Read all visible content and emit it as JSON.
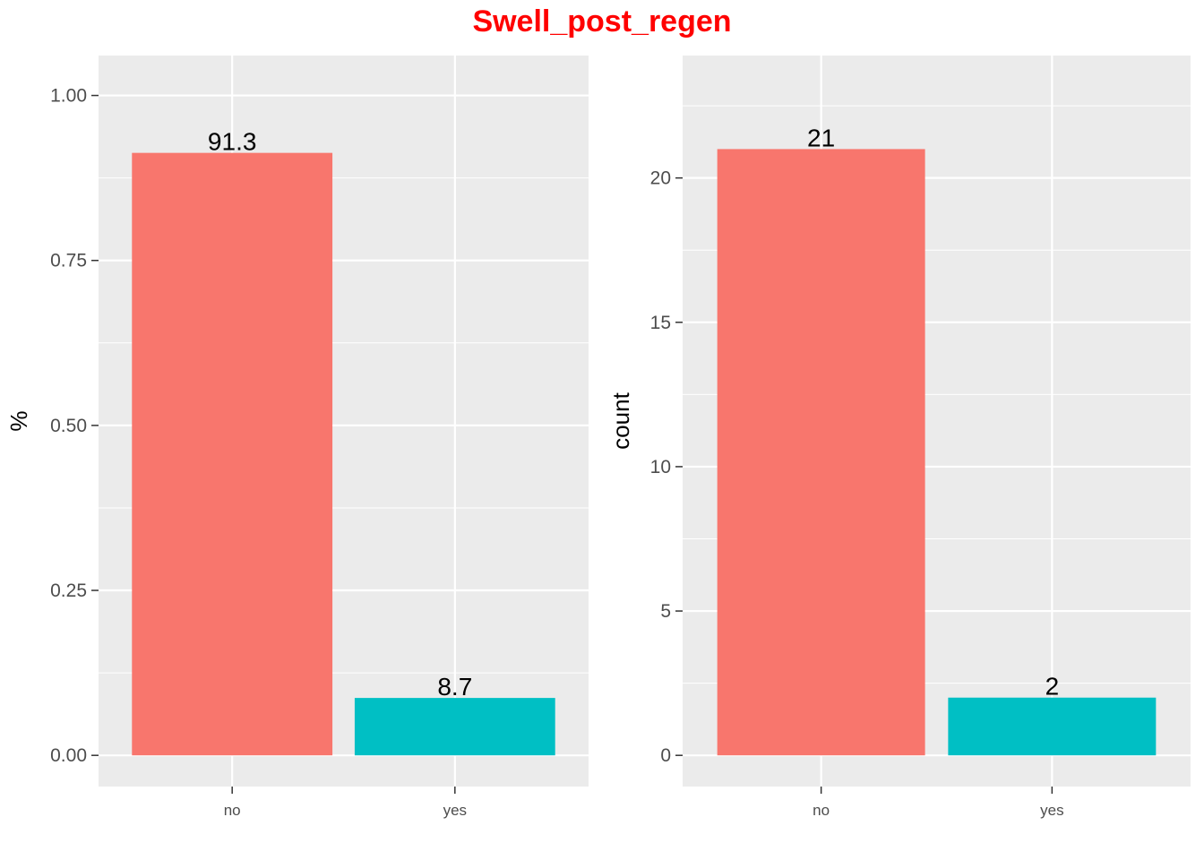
{
  "title": "Swell_post_regen",
  "colors": {
    "title": "#ff0000",
    "panel_bg": "#ebebeb",
    "grid": "#ffffff",
    "bar_no": "#f8766d",
    "bar_yes": "#00bfc4",
    "tick_text": "#4d4d4d",
    "axis_title": "#000000",
    "data_label": "#000000"
  },
  "chart_data": [
    {
      "type": "bar",
      "categories": [
        "no",
        "yes"
      ],
      "values": [
        0.913,
        0.087
      ],
      "data_labels": [
        "91.3",
        "8.7"
      ],
      "ylabel": "%",
      "xlabel": "",
      "ylim": [
        0,
        1.05
      ],
      "yticks": [
        0.0,
        0.25,
        0.5,
        0.75,
        1.0
      ],
      "ytick_labels": [
        "0.00",
        "0.25",
        "0.50",
        "0.75",
        "1.00"
      ],
      "grid": true,
      "legend": "none"
    },
    {
      "type": "bar",
      "categories": [
        "no",
        "yes"
      ],
      "values": [
        21,
        2
      ],
      "data_labels": [
        "21",
        "2"
      ],
      "ylabel": "count",
      "xlabel": "",
      "ylim": [
        0,
        24
      ],
      "yticks": [
        0,
        5,
        10,
        15,
        20
      ],
      "ytick_labels": [
        "0",
        "5",
        "10",
        "15",
        "20"
      ],
      "grid": true,
      "legend": "none"
    }
  ]
}
